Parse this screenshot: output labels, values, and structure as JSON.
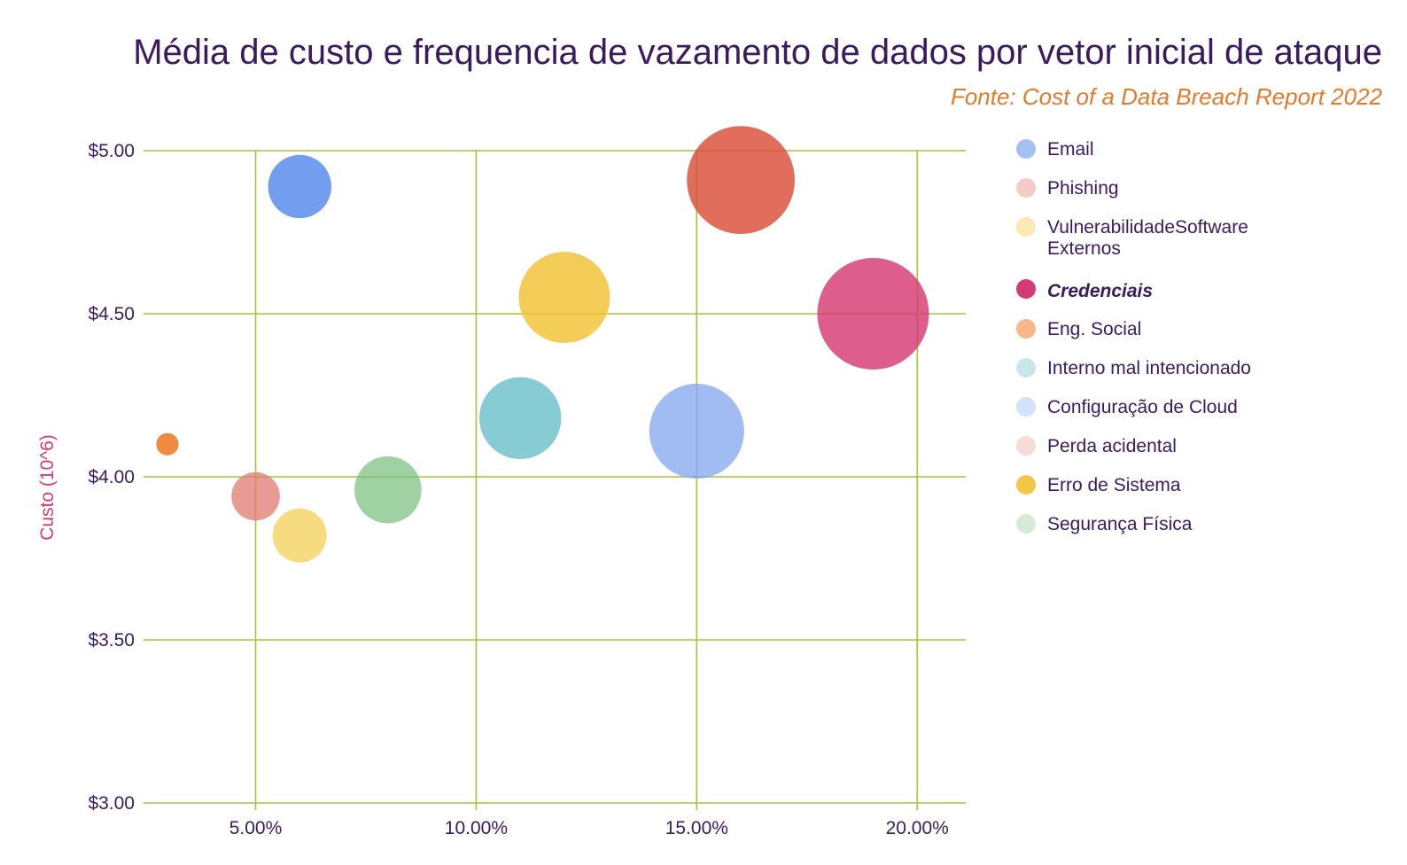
{
  "colors": {
    "title": "#3b1a5e",
    "source": "#e07b2c",
    "ylabel": "#d63a74",
    "tick": "#3b1a5e",
    "grid": "#a5c43a"
  },
  "chart_data": {
    "type": "scatter",
    "subtype": "bubble",
    "title": "Média de custo e frequencia de vazamento de dados por vetor inicial de ataque",
    "subtitle": "Fonte: Cost of a Data Breach Report 2022",
    "xlabel": "",
    "ylabel": "Custo (10^6)",
    "xlim": [
      2.7,
      21.1
    ],
    "ylim": [
      3.0,
      5.0
    ],
    "x_ticks": [
      5,
      10,
      15,
      20
    ],
    "x_tick_labels": [
      "5.00%",
      "10.00%",
      "15.00%",
      "20.00%"
    ],
    "y_ticks": [
      3.0,
      3.5,
      4.0,
      4.5,
      5.0
    ],
    "y_tick_labels": [
      "$3.00",
      "$3.50",
      "$4.00",
      "$4.50",
      "$5.00"
    ],
    "grid": true,
    "legend_position": "right",
    "series": [
      {
        "name": "Email",
        "color": "#5b8ded",
        "point_opacity": 0.85,
        "legend_opacity": 0.55,
        "x": 6,
        "y": 4.89,
        "size": 3.4,
        "legend_lines": [
          "Email"
        ]
      },
      {
        "name": "Phishing",
        "color": "#e07a70",
        "point_opacity": 0.75,
        "legend_opacity": 0.4,
        "x": 5,
        "y": 3.94,
        "size": 2.6,
        "legend_lines": [
          "Phishing"
        ]
      },
      {
        "name": "VulnerabilidadeSoftware Externos",
        "color": "#f3cf55",
        "point_opacity": 0.75,
        "legend_opacity": 0.45,
        "x": 6,
        "y": 3.82,
        "size": 2.9,
        "legend_lines": [
          "VulnerabilidadeSoftware",
          "Externos"
        ]
      },
      {
        "name": "Credenciais",
        "color": "#d63a74",
        "point_opacity": 0.82,
        "legend_opacity": 1.0,
        "x": 19,
        "y": 4.5,
        "size": 6.0,
        "legend_bold": true,
        "legend_lines": [
          "Credenciais"
        ]
      },
      {
        "name": "Eng. Social",
        "color": "#ee7d2c",
        "point_opacity": 0.9,
        "legend_opacity": 0.55,
        "x": 3,
        "y": 4.1,
        "size": 1.2,
        "legend_lines": [
          "Eng. Social"
        ]
      },
      {
        "name": "Interno mal intencionado",
        "color": "#5fb9c5",
        "point_opacity": 0.75,
        "legend_opacity": 0.35,
        "x": 11,
        "y": 4.18,
        "size": 4.4,
        "legend_lines": [
          "Interno mal intencionado"
        ]
      },
      {
        "name": "Configuração de Cloud",
        "color": "#85a9f0",
        "point_opacity": 0.78,
        "legend_opacity": 0.35,
        "x": 15,
        "y": 4.14,
        "size": 5.1,
        "legend_lines": [
          "Configuração de Cloud"
        ]
      },
      {
        "name": "Perda acidental",
        "color": "#d94a35",
        "point_opacity": 0.8,
        "legend_opacity": 0.2,
        "x": 16,
        "y": 4.91,
        "size": 5.8,
        "legend_lines": [
          "Perda acidental"
        ]
      },
      {
        "name": "Erro de Sistema",
        "color": "#f0c232",
        "point_opacity": 0.82,
        "legend_opacity": 0.9,
        "x": 12,
        "y": 4.55,
        "size": 4.9,
        "legend_lines": [
          "Erro de Sistema"
        ]
      },
      {
        "name": "Segurança Física",
        "color": "#76bd7a",
        "point_opacity": 0.7,
        "legend_opacity": 0.3,
        "x": 8,
        "y": 3.96,
        "size": 3.6,
        "legend_lines": [
          "Segurança Física"
        ]
      }
    ]
  }
}
